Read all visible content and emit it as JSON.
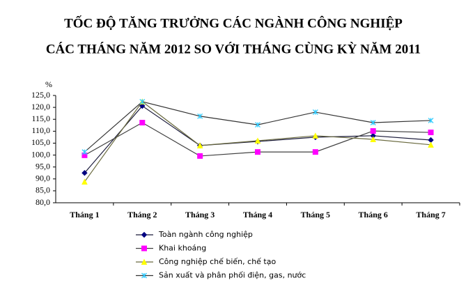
{
  "chart_data": {
    "type": "line",
    "title": "TỐC ĐỘ TĂNG TRƯỞNG CÁC NGÀNH CÔNG NGHIỆP",
    "subtitle": "CÁC THÁNG NĂM 2012 SO VỚI THÁNG CÙNG KỲ NĂM 2011",
    "y_label": "%",
    "categories": [
      "Tháng 1",
      "Tháng 2",
      "Tháng 3",
      "Tháng 4",
      "Tháng 5",
      "Tháng 6",
      "Tháng 7"
    ],
    "ylim": [
      80,
      125
    ],
    "yticks": [
      {
        "value": 80,
        "label": "80,0"
      },
      {
        "value": 85,
        "label": "85,0"
      },
      {
        "value": 90,
        "label": "90,0"
      },
      {
        "value": 95,
        "label": "95,0"
      },
      {
        "value": 100,
        "label": "100,0"
      },
      {
        "value": 105,
        "label": "105,0"
      },
      {
        "value": 110,
        "label": "110,0"
      },
      {
        "value": 115,
        "label": "115,0"
      },
      {
        "value": 120,
        "label": "120,0"
      },
      {
        "value": 125,
        "label": "125,0"
      }
    ],
    "grid": false,
    "series": [
      {
        "name": "Toàn ngành công nghiệp",
        "color": "#000080",
        "line_color": "#1a1a3a",
        "marker": "diamond",
        "values": [
          92.5,
          120.6,
          104.0,
          105.7,
          107.5,
          108.1,
          106.3
        ]
      },
      {
        "name": "Khai khoáng",
        "color": "#ff00ff",
        "line_color": "#404040",
        "marker": "square",
        "values": [
          99.9,
          113.6,
          99.6,
          101.3,
          101.3,
          110.1,
          109.5
        ]
      },
      {
        "name": "Công nghiệp chế biến, chế tạo",
        "color": "#ffff00",
        "line_color": "#6b6b40",
        "marker": "triangle",
        "values": [
          88.8,
          122.4,
          104.0,
          106.0,
          108.1,
          106.6,
          104.3
        ]
      },
      {
        "name": "Sản xuất và phân phối điện, gas, nước",
        "color": "#33ccff",
        "line_color": "#333333",
        "marker": "star",
        "values": [
          101.3,
          122.4,
          116.3,
          112.7,
          118.0,
          113.6,
          114.5
        ]
      }
    ]
  }
}
